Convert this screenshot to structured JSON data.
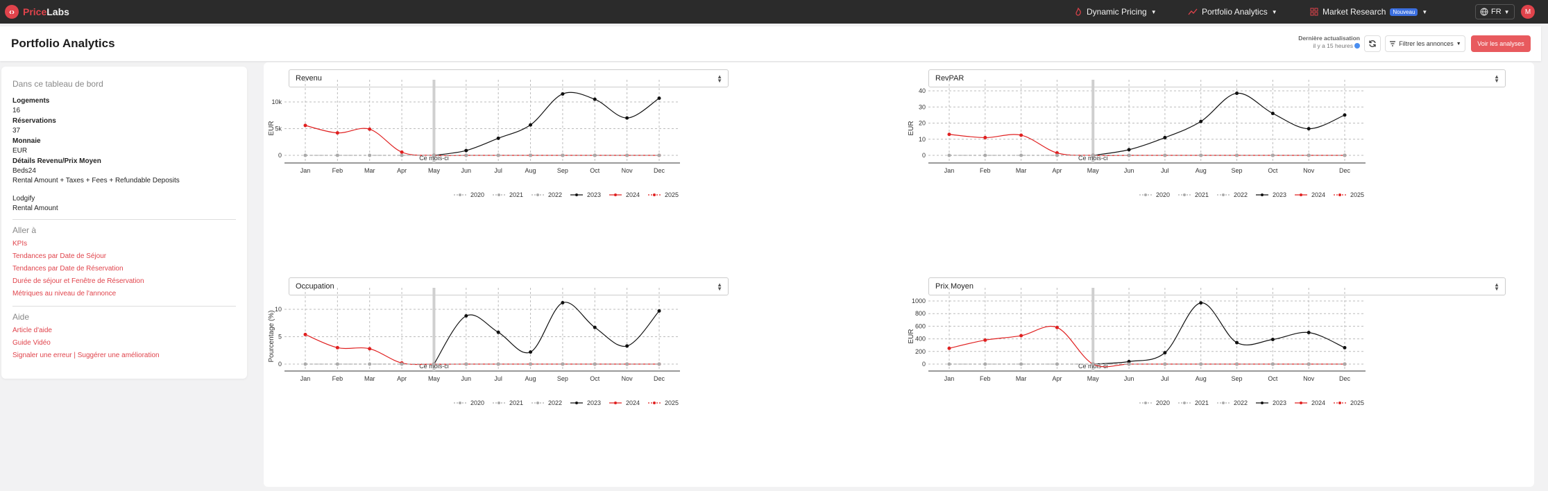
{
  "topnav": {
    "logo_a": "Price",
    "logo_b": "Labs",
    "items": [
      {
        "label": "Dynamic Pricing"
      },
      {
        "label": "Portfolio Analytics"
      },
      {
        "label": "Market Research",
        "badge": "Nouveau"
      }
    ],
    "lang": "FR",
    "avatar": "M"
  },
  "header": {
    "title": "Portfolio Analytics",
    "last_update_label": "Dernière actualisation",
    "last_update_value": "il y a 15 heures",
    "filter_label": "Filtrer les annonces",
    "see_label": "Voir les analyses"
  },
  "sidebar": {
    "title": "Dans ce tableau de bord",
    "logements_label": "Logements",
    "logements_value": "16",
    "reservations_label": "Réservations",
    "reservations_value": "37",
    "monnaie_label": "Monnaie",
    "monnaie_value": "EUR",
    "details_label": "Détails Revenu/Prix Moyen",
    "details_source1": "Beds24",
    "details_desc1": "Rental Amount + Taxes + Fees + Refundable Deposits",
    "details_source2": "Lodgify",
    "details_desc2": "Rental Amount",
    "goto_title": "Aller à",
    "goto_links": [
      "KPIs",
      "Tendances par Date de Séjour",
      "Tendances par Date de Réservation",
      "Durée de séjour et Fenêtre de Réservation",
      "Métriques au niveau de l'annonce"
    ],
    "help_title": "Aide",
    "help_links": [
      "Article d'aide",
      "Guide Vidéo",
      "Signaler une erreur | Suggérer une amélioration"
    ]
  },
  "colors": {
    "accent": "#e0434b",
    "series_2023": "#111111",
    "series_2024": "#e02020",
    "series_other": "#aaaaaa"
  },
  "months": [
    "Jan",
    "Feb",
    "Mar",
    "Apr",
    "May",
    "Jun",
    "Jul",
    "Aug",
    "Sep",
    "Oct",
    "Nov",
    "Dec"
  ],
  "current_month_label": "Ce mois-ci",
  "legend_years": [
    "2020",
    "2021",
    "2022",
    "2023",
    "2024",
    "2025"
  ],
  "chart_data": [
    {
      "type": "line",
      "select_label": "Revenu",
      "ylabel": "EUR",
      "ylim": [
        0,
        12500
      ],
      "yticks": [
        0,
        5000,
        10000
      ],
      "ytick_labels": [
        "0",
        "5k",
        "10k"
      ],
      "categories": [
        "Jan",
        "Feb",
        "Mar",
        "Apr",
        "May",
        "Jun",
        "Jul",
        "Aug",
        "Sep",
        "Oct",
        "Nov",
        "Dec"
      ],
      "current_month_index": 4,
      "series": [
        {
          "name": "2023",
          "values": [
            null,
            null,
            null,
            null,
            0,
            900,
            3200,
            5700,
            11500,
            10500,
            7000,
            10700
          ]
        },
        {
          "name": "2024",
          "values": [
            5600,
            4200,
            4900,
            600,
            0,
            0,
            0,
            0,
            0,
            0,
            0,
            0
          ]
        },
        {
          "name": "2025",
          "values": [
            0,
            0,
            0,
            0,
            0,
            0,
            0,
            0,
            0,
            0,
            0,
            0
          ]
        }
      ],
      "legend": "bottom-right",
      "grid": true
    },
    {
      "type": "line",
      "select_label": "RevPAR",
      "ylabel": "EUR",
      "ylim": [
        0,
        45
      ],
      "yticks": [
        0,
        10,
        20,
        30,
        40
      ],
      "ytick_labels": [
        "0",
        "10",
        "20",
        "30",
        "40"
      ],
      "categories": [
        "Jan",
        "Feb",
        "Mar",
        "Apr",
        "May",
        "Jun",
        "Jul",
        "Aug",
        "Sep",
        "Oct",
        "Nov",
        "Dec"
      ],
      "current_month_index": 4,
      "series": [
        {
          "name": "2023",
          "values": [
            null,
            null,
            null,
            null,
            0,
            3.5,
            11,
            21,
            38.5,
            26,
            16.5,
            25
          ]
        },
        {
          "name": "2024",
          "values": [
            13,
            11,
            12.5,
            1.5,
            0,
            0,
            0,
            0,
            0,
            0,
            0,
            0
          ]
        },
        {
          "name": "2025",
          "values": [
            0,
            0,
            0,
            0,
            0,
            0,
            0,
            0,
            0,
            0,
            0,
            0
          ]
        }
      ],
      "legend": "bottom-right",
      "grid": true
    },
    {
      "type": "line",
      "select_label": "Occupation",
      "ylabel": "Pourcentage (%)",
      "ylim": [
        0,
        12
      ],
      "yticks": [
        0,
        5,
        10
      ],
      "ytick_labels": [
        "0",
        "5",
        "10"
      ],
      "categories": [
        "Jan",
        "Feb",
        "Mar",
        "Apr",
        "May",
        "Jun",
        "Jul",
        "Aug",
        "Sep",
        "Oct",
        "Nov",
        "Dec"
      ],
      "current_month_index": 4,
      "series": [
        {
          "name": "2023",
          "values": [
            null,
            null,
            null,
            null,
            0,
            8.8,
            5.8,
            2.2,
            11.2,
            6.7,
            3.3,
            9.7
          ]
        },
        {
          "name": "2024",
          "values": [
            5.4,
            3.0,
            2.8,
            0.2,
            0,
            0,
            0,
            0,
            0,
            0,
            0,
            0
          ]
        },
        {
          "name": "2025",
          "values": [
            0,
            0,
            0,
            0,
            0,
            0,
            0,
            0,
            0,
            0,
            0,
            0
          ]
        }
      ],
      "legend": "bottom-right",
      "grid": true
    },
    {
      "type": "line",
      "select_label": "Prix Moyen",
      "ylabel": "EUR",
      "ylim": [
        0,
        1100
      ],
      "yticks": [
        0,
        200,
        400,
        600,
        800,
        1000
      ],
      "ytick_labels": [
        "0",
        "200",
        "400",
        "600",
        "800",
        "1000"
      ],
      "categories": [
        "Jan",
        "Feb",
        "Mar",
        "Apr",
        "May",
        "Jun",
        "Jul",
        "Aug",
        "Sep",
        "Oct",
        "Nov",
        "Dec"
      ],
      "current_month_index": 4,
      "series": [
        {
          "name": "2023",
          "values": [
            null,
            null,
            null,
            null,
            0,
            40,
            180,
            970,
            340,
            390,
            500,
            260
          ]
        },
        {
          "name": "2024",
          "values": [
            250,
            380,
            450,
            580,
            0,
            0,
            0,
            0,
            0,
            0,
            0,
            0
          ]
        },
        {
          "name": "2025",
          "values": [
            0,
            0,
            0,
            0,
            0,
            0,
            0,
            0,
            0,
            0,
            0,
            0
          ]
        }
      ],
      "legend": "bottom-right",
      "grid": true
    }
  ]
}
